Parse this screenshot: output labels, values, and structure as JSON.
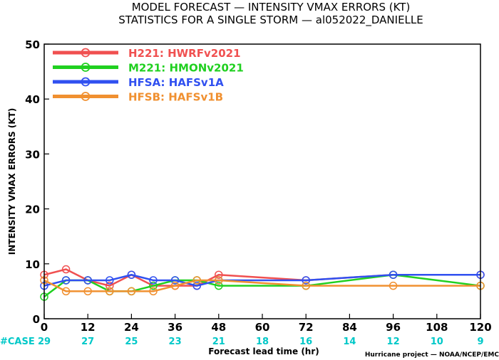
{
  "title_line1": "MODEL FORECAST — INTENSITY VMAX ERRORS (KT)",
  "title_line2": "STATISTICS FOR A SINGLE STORM — al052022_DANIELLE",
  "case_label": "#CASE",
  "credit": "Hurricane project — NOAA/NCEP/EMC",
  "chart_data": {
    "type": "line",
    "title": "MODEL FORECAST — INTENSITY VMAX ERRORS (KT)",
    "subtitle": "STATISTICS FOR A SINGLE STORM — al052022_DANIELLE",
    "xlabel": "Forecast lead time (hr)",
    "ylabel": "INTENSITY VMAX ERRORS (KT)",
    "xlim": [
      0,
      120
    ],
    "ylim": [
      0,
      50
    ],
    "xticks": [
      "0",
      "12",
      "24",
      "36",
      "48",
      "60",
      "72",
      "84",
      "96",
      "108",
      "120"
    ],
    "yticks": [
      "0",
      "10",
      "20",
      "30",
      "40",
      "50"
    ],
    "grid": false,
    "legend_position": "top-left",
    "case_counts": [
      "29",
      "27",
      "25",
      "23",
      "21",
      "18",
      "16",
      "14",
      "12",
      "10",
      "9"
    ],
    "series": [
      {
        "name": "H221: HWRFv2021",
        "color": "#f05050",
        "x": [
          0,
          6,
          12,
          18,
          24,
          30,
          36,
          42,
          48,
          72,
          96,
          120
        ],
        "y": [
          8,
          9,
          7,
          6,
          8,
          6,
          6,
          6,
          8,
          7,
          8,
          8
        ]
      },
      {
        "name": "M221: HMONv2021",
        "color": "#20d020",
        "x": [
          0,
          6,
          12,
          18,
          24,
          30,
          36,
          42,
          48,
          72,
          96,
          120
        ],
        "y": [
          4,
          7,
          7,
          5,
          5,
          6,
          7,
          7,
          6,
          6,
          8,
          6
        ]
      },
      {
        "name": "HFSA: HAFSv1A",
        "color": "#3050f0",
        "x": [
          0,
          6,
          12,
          18,
          24,
          30,
          36,
          42,
          48,
          72,
          96,
          120
        ],
        "y": [
          6,
          7,
          7,
          7,
          8,
          7,
          7,
          6,
          7,
          7,
          8,
          8
        ]
      },
      {
        "name": "HFSB: HAFSv1B",
        "color": "#f09030",
        "x": [
          0,
          6,
          12,
          18,
          24,
          30,
          36,
          42,
          48,
          72,
          96,
          120
        ],
        "y": [
          7,
          5,
          5,
          5,
          5,
          5,
          6,
          7,
          7,
          6,
          6,
          6
        ]
      }
    ]
  }
}
